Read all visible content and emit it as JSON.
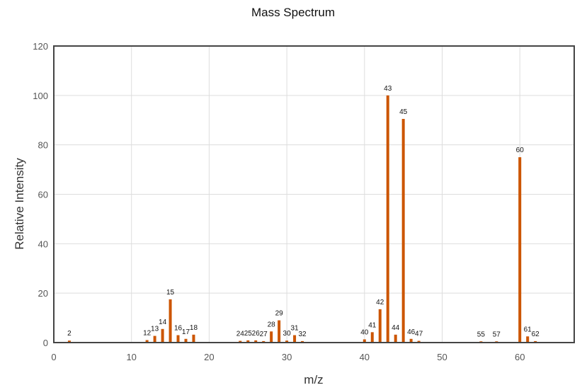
{
  "chart_data": {
    "type": "bar",
    "title": "Mass Spectrum",
    "xlabel": "m/z",
    "ylabel": "Relative Intensity",
    "xlim": [
      0,
      67
    ],
    "ylim": [
      0,
      120
    ],
    "xticks": [
      0,
      10,
      20,
      30,
      40,
      50,
      60
    ],
    "yticks": [
      0,
      20,
      40,
      60,
      80,
      100,
      120
    ],
    "grid": true,
    "bar_color": "#cc5500",
    "peaks": [
      {
        "mz": 2,
        "intensity": 0.8
      },
      {
        "mz": 12,
        "intensity": 1.0
      },
      {
        "mz": 13,
        "intensity": 2.7
      },
      {
        "mz": 14,
        "intensity": 5.5
      },
      {
        "mz": 15,
        "intensity": 17.5
      },
      {
        "mz": 16,
        "intensity": 3.0
      },
      {
        "mz": 17,
        "intensity": 1.5
      },
      {
        "mz": 18,
        "intensity": 3.2
      },
      {
        "mz": 24,
        "intensity": 0.7
      },
      {
        "mz": 25,
        "intensity": 0.9
      },
      {
        "mz": 26,
        "intensity": 0.9
      },
      {
        "mz": 27,
        "intensity": 0.6
      },
      {
        "mz": 28,
        "intensity": 4.5
      },
      {
        "mz": 29,
        "intensity": 9.0
      },
      {
        "mz": 30,
        "intensity": 0.8
      },
      {
        "mz": 31,
        "intensity": 3.0
      },
      {
        "mz": 32,
        "intensity": 0.6
      },
      {
        "mz": 40,
        "intensity": 1.3
      },
      {
        "mz": 41,
        "intensity": 4.2
      },
      {
        "mz": 42,
        "intensity": 13.5
      },
      {
        "mz": 43,
        "intensity": 100
      },
      {
        "mz": 44,
        "intensity": 3.2
      },
      {
        "mz": 45,
        "intensity": 90.5
      },
      {
        "mz": 46,
        "intensity": 1.5
      },
      {
        "mz": 47,
        "intensity": 0.7
      },
      {
        "mz": 55,
        "intensity": 0.5
      },
      {
        "mz": 57,
        "intensity": 0.5
      },
      {
        "mz": 60,
        "intensity": 75
      },
      {
        "mz": 61,
        "intensity": 2.5
      },
      {
        "mz": 62,
        "intensity": 0.6
      }
    ]
  }
}
